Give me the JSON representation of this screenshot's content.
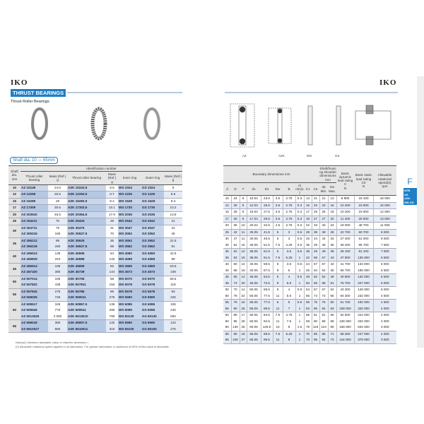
{
  "logo": "IKO",
  "section_title": "THRUST BEARINGS",
  "subtitle": "Thrust Roller Bearings",
  "shaft_range": "Shaft dia. 10 — 65mm",
  "diagram_labels": [
    "AZ",
    "AZK",
    "WS",
    "GS"
  ],
  "side_tab": {
    "letter": "F",
    "items": [
      "NTB",
      "AS",
      "AZK",
      "WS·GS"
    ]
  },
  "left_header": {
    "shaft": "Shaft dia.",
    "shaft_unit": "mm",
    "group": "Identification number",
    "az": "Thrust roller bearing",
    "mass": "Mass (Ref.)",
    "mass_unit": "g",
    "azk": "Thrust roller bearing",
    "inner": "Inner ring",
    "outer": "Outer ring"
  },
  "right_header": {
    "boundary": "Boundary dimensions",
    "boundary_unit": "mm",
    "cols": [
      "d",
      "D",
      "T",
      "d1",
      "D1",
      "Dw",
      "B",
      "rs min(1)",
      "C1",
      "C2"
    ],
    "shoulder": "Shaft/housing shoulder dimensions mm",
    "da": "da Min.",
    "Da": "Da Max.",
    "dyn": "Basic dynamic load rating C",
    "stat": "Basic static load rating C0",
    "N": "N",
    "speed": "Allowable rotational speed(2)",
    "rpm": "rpm"
  },
  "groups": [
    {
      "shaft": "10",
      "rows": [
        [
          "AZ 10249",
          "24.6",
          "AZK 10243.5",
          "8.6",
          "WS 1024",
          "GS 1024",
          "8"
        ]
      ]
    },
    {
      "shaft": "12",
      "rows": [
        [
          "AZ 12269",
          "26.6",
          "AZK 12263.5",
          "8.7",
          "WS 1226",
          "GS 1226",
          "8.9"
        ]
      ]
    },
    {
      "shaft": "15",
      "rows": [
        [
          "AZ 15289",
          "28",
          "AZK 15283.5",
          "9.4",
          "WS 1528",
          "GS 1528",
          "9.3"
        ]
      ]
    },
    {
      "shaft": "17",
      "rows": [
        [
          "AZ 17309",
          "30.6",
          "AZK 17303.5",
          "10.1",
          "WS 1730",
          "GS 1730",
          "10.2"
        ]
      ]
    },
    {
      "shaft": "20",
      "rows": [
        [
          "AZ 203510",
          "45.5",
          "AZK 20354.5",
          "17.9",
          "WS 2035",
          "GS 2035",
          "13.8"
        ]
      ]
    },
    {
      "shaft": "25",
      "rows": [
        [
          "AZ 254211",
          "70",
          "AZK 25425",
          "28",
          "WS 2542",
          "GS 2542",
          "21"
        ]
      ]
    },
    {
      "shaft": "30",
      "rows": [
        [
          "AZ 304711",
          "75",
          "AZK 30475",
          "31",
          "WS 3047",
          "GS 3047",
          "24"
        ],
        [
          "AZ 305216",
          "160",
          "AZK 30527.5",
          "70",
          "WS 3052",
          "GS 3052",
          "45"
        ]
      ]
    },
    {
      "shaft": "35",
      "rows": [
        [
          "AZ 355212",
          "99",
          "AZK 35525",
          "36",
          "WS 3552",
          "GS 3552",
          "31.5"
        ],
        [
          "AZ 356218",
          "260",
          "AZK 35627.5",
          "98",
          "WS 3562",
          "GS 3562",
          "81"
        ]
      ]
    },
    {
      "shaft": "40",
      "rows": [
        [
          "AZ 406013",
          "139",
          "AZK 40606",
          "54",
          "WS 4060",
          "GS 4060",
          "42.5"
        ],
        [
          "AZ 406819",
          "310",
          "AZK 40689",
          "132",
          "WS 4068",
          "GS 4068",
          "89"
        ]
      ]
    },
    {
      "shaft": "45",
      "rows": [
        [
          "AZ 456514",
          "169",
          "AZK 45656",
          "62",
          "WS 4565",
          "GS 4565",
          "53.5"
        ],
        [
          "AZ 457320",
          "380",
          "AZK 45739",
          "144",
          "WS 4573",
          "GS 4573",
          "108"
        ]
      ]
    },
    {
      "shaft": "50",
      "rows": [
        [
          "AZ 507014",
          "185",
          "AZK 50706",
          "68",
          "WS 5070",
          "GS 5070",
          "58.5"
        ],
        [
          "AZ 507822",
          "435",
          "AZK 507811",
          "194",
          "WS 5078",
          "GS 5078",
          "118"
        ]
      ]
    },
    {
      "shaft": "55",
      "rows": [
        [
          "AZ 557816",
          "275",
          "AZK 55786",
          "89",
          "WS 5578",
          "GS 5578",
          "93"
        ],
        [
          "AZ 559025",
          "725",
          "AZK 559011",
          "275",
          "WS 5590",
          "GS 5590",
          "225"
        ]
      ]
    },
    {
      "shaft": "60",
      "rows": [
        [
          "AZ 608517",
          "345",
          "AZK 60857.5",
          "135",
          "WS 6085",
          "GS 6085",
          "106"
        ],
        [
          "AZ 609526",
          "770",
          "AZK 609511",
          "290",
          "WS 6095",
          "GS 6095",
          "240"
        ],
        [
          "AZ 6013026",
          "2 090",
          "AZK 6013010",
          "790",
          "WS 60130",
          "GS 60130",
          "650"
        ]
      ]
    },
    {
      "shaft": "65",
      "rows": [
        [
          "AZ 659018",
          "380",
          "AZK 65907.5",
          "132",
          "WS 6590",
          "GS 6590",
          "124"
        ],
        [
          "AZ 6510027",
          "860",
          "AZK 6510011",
          "310",
          "WS 65100",
          "GS 65100",
          "275"
        ]
      ]
    }
  ],
  "dims": [
    [
      [
        "10",
        "24",
        "9",
        "10.04",
        "23.6",
        "3.5",
        "2.75",
        "0.3",
        "13",
        "21",
        "21",
        "13",
        "8 900",
        "19 100",
        "18 000"
      ]
    ],
    [
      [
        "12",
        "26",
        "9",
        "12.04",
        "25.6",
        "3.5",
        "2.75",
        "0.3",
        "15",
        "23",
        "23",
        "16",
        "10 400",
        "23 900",
        "16 000"
      ]
    ],
    [
      [
        "15",
        "28",
        "9",
        "15.04",
        "27.6",
        "3.5",
        "2.75",
        "0.3",
        "17",
        "25",
        "25",
        "18",
        "10 200",
        "23 900",
        "14 000"
      ]
    ],
    [
      [
        "17",
        "30",
        "9",
        "17.04",
        "29.6",
        "3.5",
        "2.75",
        "0.3",
        "19",
        "27",
        "27",
        "20",
        "11 400",
        "28 600",
        "13 000"
      ]
    ],
    [
      [
        "20",
        "35",
        "10",
        "20.04",
        "34.6",
        "4.5",
        "2.75",
        "0.3",
        "22",
        "33",
        "33",
        "23",
        "19 000",
        "48 700",
        "11 000"
      ]
    ],
    [
      [
        "25",
        "42",
        "11",
        "25.05",
        "41.6",
        "5",
        "3",
        "0.6",
        "28",
        "39",
        "39",
        "28",
        "22 700",
        "60 700",
        "9 000"
      ]
    ],
    [
      [
        "30",
        "47",
        "11",
        "30.05",
        "46.5",
        "5",
        "3",
        "0.6",
        "33",
        "44",
        "44",
        "33",
        "27 400",
        "81 000",
        "8 000"
      ],
      [
        "30",
        "52",
        "16",
        "30.05",
        "51.5",
        "7.5",
        "4.25",
        "0.6",
        "35",
        "49",
        "48",
        "36",
        "38 400",
        "95 700",
        "7 500"
      ]
    ],
    [
      [
        "35",
        "52",
        "12",
        "35.05",
        "51.5",
        "5",
        "3.5",
        "0.6",
        "38",
        "49",
        "49",
        "38",
        "29 100",
        "91 100",
        "7 000"
      ],
      [
        "35",
        "62",
        "18",
        "35.05",
        "61.5",
        "7.5",
        "5.25",
        "1",
        "42",
        "58",
        "57",
        "43",
        "47 900",
        "135 000",
        "6 500"
      ]
    ],
    [
      [
        "40",
        "60",
        "13",
        "40.05",
        "59.5",
        "6",
        "3.5",
        "0.6",
        "44",
        "57",
        "57",
        "44",
        "41 700",
        "133 000",
        "6 000"
      ],
      [
        "40",
        "68",
        "19",
        "40.05",
        "67.5",
        "9",
        "5",
        "1",
        "45",
        "64",
        "64",
        "46",
        "68 700",
        "195 000",
        "5 500"
      ]
    ],
    [
      [
        "45",
        "65",
        "14",
        "45.05",
        "64.5",
        "6",
        "4",
        "0.6",
        "49",
        "62",
        "62",
        "49",
        "40 800",
        "132 000",
        "5 500"
      ],
      [
        "45",
        "73",
        "20",
        "45.05",
        "72.5",
        "9",
        "5.5",
        "1",
        "50",
        "69",
        "68",
        "51",
        "75 700",
        "227 000",
        "5 000"
      ]
    ],
    [
      [
        "50",
        "70",
        "14",
        "50.05",
        "69.5",
        "6",
        "4",
        "0.6",
        "54",
        "67",
        "67",
        "54",
        "43 300",
        "146 000",
        "5 000"
      ],
      [
        "50",
        "78",
        "22",
        "50.05",
        "77.5",
        "11",
        "5.5",
        "1",
        "55",
        "74",
        "73",
        "56",
        "84 300",
        "232 000",
        "4 500"
      ]
    ],
    [
      [
        "55",
        "78",
        "16",
        "55.05",
        "77.5",
        "6",
        "5",
        "0.6",
        "59",
        "75",
        "75",
        "60",
        "51 700",
        "192 000",
        "4 500"
      ],
      [
        "55",
        "90",
        "25",
        "55.05",
        "89.5",
        "11",
        "7",
        "1",
        "63",
        "85",
        "84",
        "63",
        "108 000",
        "332 000",
        "4 000"
      ]
    ],
    [
      [
        "60",
        "85",
        "17",
        "60.05",
        "84.5",
        "7.5",
        "4.75",
        "1",
        "65",
        "81",
        "81",
        "66",
        "64 600",
        "224 000",
        "4 000"
      ],
      [
        "60",
        "95",
        "26",
        "60.05",
        "94.5",
        "11",
        "7.5",
        "1",
        "68",
        "90",
        "89",
        "68",
        "106 000",
        "332 000",
        "4 000"
      ],
      [
        "60",
        "130",
        "26",
        "60.05",
        "129.5",
        "10",
        "8",
        "1.5",
        "79",
        "119",
        "119",
        "80",
        "158 000",
        "634 000",
        "3 000"
      ]
    ],
    [
      [
        "65",
        "90",
        "18",
        "65.05",
        "89.5",
        "7.5",
        "5.25",
        "1",
        "70",
        "86",
        "86",
        "71",
        "68 300",
        "247 000",
        "4 000"
      ],
      [
        "65",
        "100",
        "27",
        "65.05",
        "99.5",
        "11",
        "8",
        "1",
        "73",
        "95",
        "94",
        "73",
        "116 000",
        "379 000",
        "3 500"
      ]
    ]
  ],
  "notes": [
    "Notes(1) Minimum allowable value of chamfer dimension r",
    "(2) Allowable rotational speed applies to oil lubrication. For grease lubrication, a maximum of 60% of this value is allowable."
  ],
  "colors": {
    "accent": "#1f7fc4",
    "band": "#e4ebf5",
    "id_column": "#c8d7ec"
  }
}
